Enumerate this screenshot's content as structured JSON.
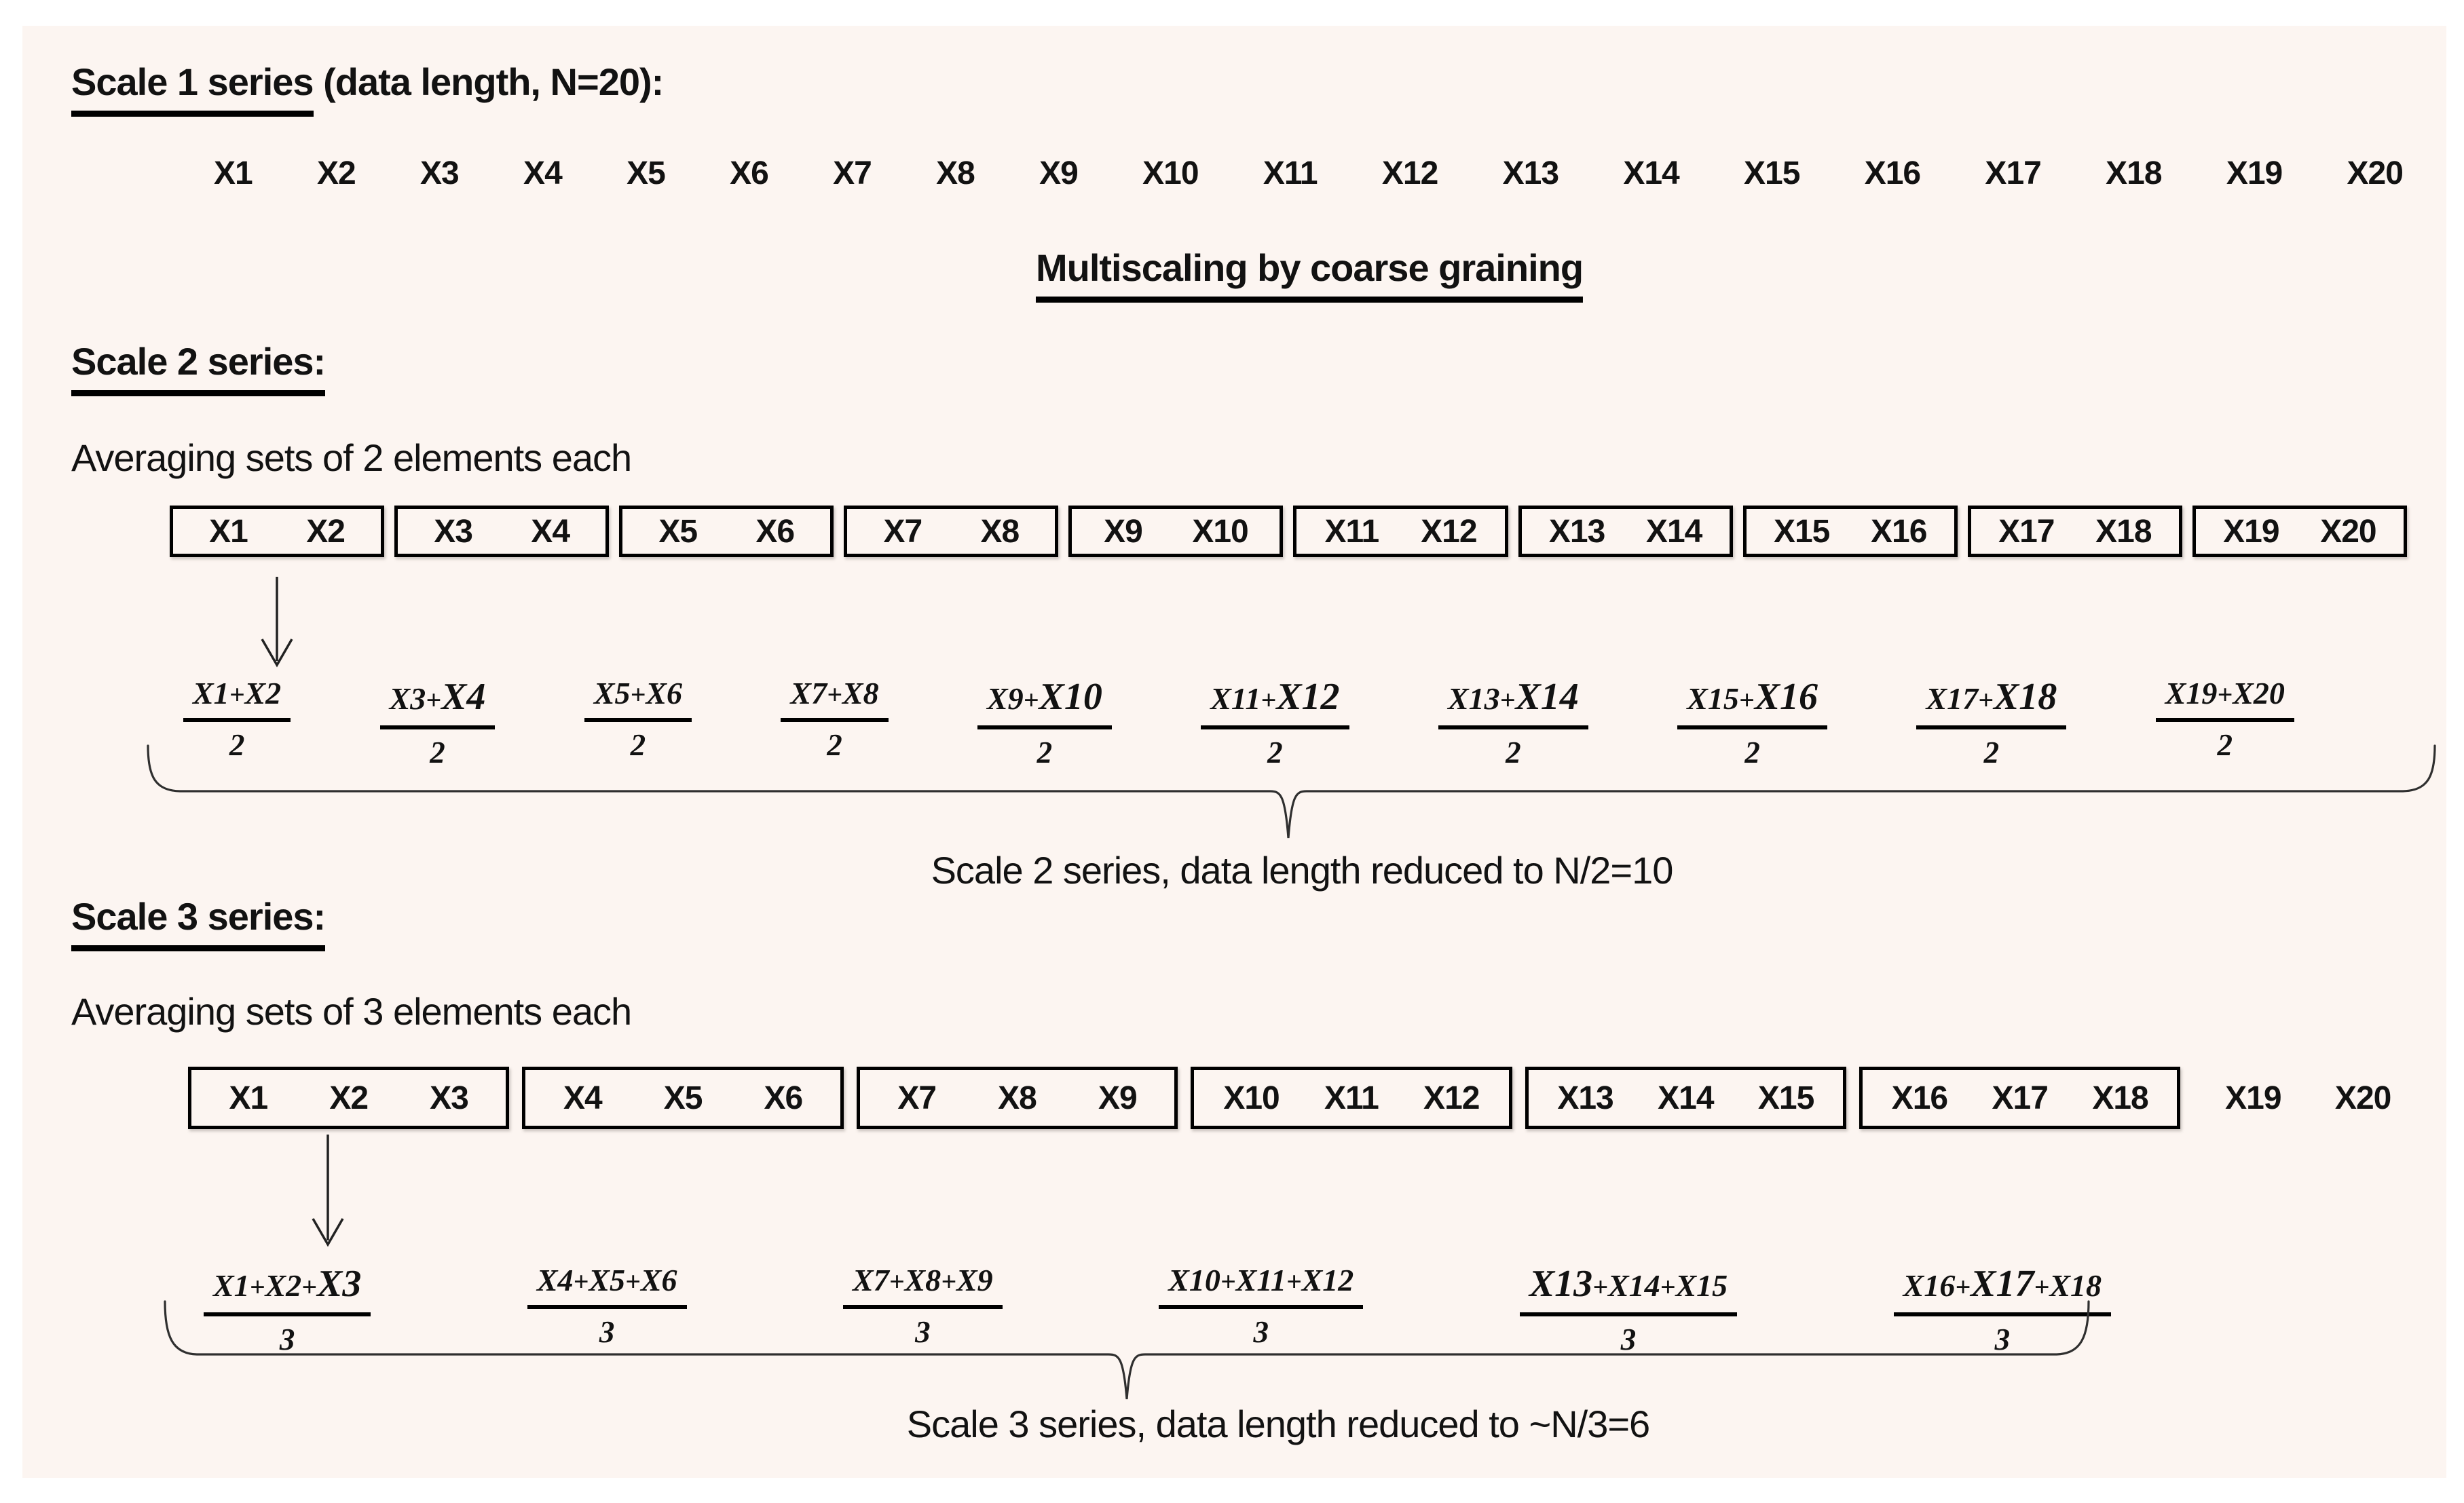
{
  "colors": {
    "page_bg": "#ffffff",
    "panel_bg": "#fcf5f1",
    "text": "#121212",
    "line": "#2f2f2f"
  },
  "scale1": {
    "heading_underlined": "Scale 1 series",
    "heading_rest": " (data length, N=20):",
    "series": [
      "X1",
      "X2",
      "X3",
      "X4",
      "X5",
      "X6",
      "X7",
      "X8",
      "X9",
      "X10",
      "X11",
      "X12",
      "X13",
      "X14",
      "X15",
      "X16",
      "X17",
      "X18",
      "X19",
      "X20"
    ]
  },
  "divider_title": "Multiscaling by coarse graining",
  "scale2": {
    "heading": "Scale 2 series:",
    "subheading": "Averaging sets of 2 elements each",
    "boxes": [
      [
        "X1",
        "X2"
      ],
      [
        "X3",
        "X4"
      ],
      [
        "X5",
        "X6"
      ],
      [
        "X7",
        "X8"
      ],
      [
        "X9",
        "X10"
      ],
      [
        "X11",
        "X12"
      ],
      [
        "X13",
        "X14"
      ],
      [
        "X15",
        "X16"
      ],
      [
        "X17",
        "X18"
      ],
      [
        "X19",
        "X20"
      ]
    ],
    "fractions": [
      {
        "num": [
          "X1",
          "X2"
        ],
        "big": [],
        "den": "2"
      },
      {
        "num": [
          "X3",
          "X4"
        ],
        "big": [
          1
        ],
        "den": "2"
      },
      {
        "num": [
          "X5",
          "X6"
        ],
        "big": [],
        "den": "2"
      },
      {
        "num": [
          "X7",
          "X8"
        ],
        "big": [],
        "den": "2"
      },
      {
        "num": [
          "X9",
          "X10"
        ],
        "big": [
          1
        ],
        "den": "2"
      },
      {
        "num": [
          "X11",
          "X12"
        ],
        "big": [
          1
        ],
        "den": "2"
      },
      {
        "num": [
          "X13",
          "X14"
        ],
        "big": [
          1
        ],
        "den": "2"
      },
      {
        "num": [
          "X15",
          "X16"
        ],
        "big": [
          1
        ],
        "den": "2"
      },
      {
        "num": [
          "X17",
          "X18"
        ],
        "big": [
          1
        ],
        "den": "2"
      },
      {
        "num": [
          "X19",
          "X20"
        ],
        "big": [],
        "den": "2"
      }
    ],
    "caption": "Scale 2 series, data length reduced to N/2=10"
  },
  "scale3": {
    "heading": "Scale 3 series:",
    "subheading": "Averaging sets of 3 elements each",
    "boxes": [
      [
        "X1",
        "X2",
        "X3"
      ],
      [
        "X4",
        "X5",
        "X6"
      ],
      [
        "X7",
        "X8",
        "X9"
      ],
      [
        "X10",
        "X11",
        "X12"
      ],
      [
        "X13",
        "X14",
        "X15"
      ],
      [
        "X16",
        "X17",
        "X18"
      ]
    ],
    "unboxed": [
      "X19",
      "X20"
    ],
    "fractions": [
      {
        "num": [
          "X1",
          "X2",
          "X3"
        ],
        "big": [
          2
        ],
        "den": "3"
      },
      {
        "num": [
          "X4",
          "X5",
          "X6"
        ],
        "big": [],
        "den": "3"
      },
      {
        "num": [
          "X7",
          "X8",
          "X9"
        ],
        "big": [],
        "den": "3"
      },
      {
        "num": [
          "X10",
          "X11",
          "X12"
        ],
        "big": [],
        "den": "3"
      },
      {
        "num": [
          "X13",
          "X14",
          "X15"
        ],
        "big": [
          0
        ],
        "den": "3"
      },
      {
        "num": [
          "X16",
          "X17",
          "X18"
        ],
        "big": [
          1
        ],
        "den": "3"
      }
    ],
    "caption": "Scale 3 series, data length reduced to ~N/3=6"
  }
}
